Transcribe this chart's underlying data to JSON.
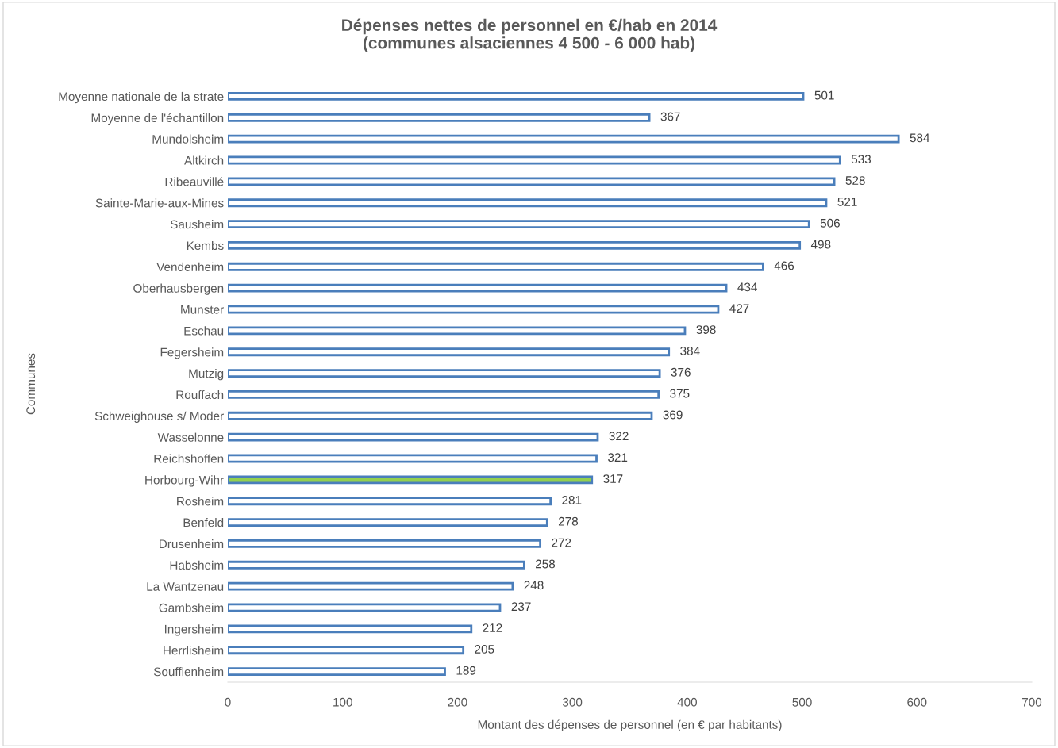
{
  "chart_data": {
    "type": "bar",
    "orientation": "horizontal",
    "title": "Dépenses nettes de personnel en €/hab en 2014\n(communes alsaciennes 4 500 - 6 000 hab)",
    "xlabel": "Montant des dépenses de personnel (en € par habitants)",
    "ylabel": "Communes",
    "categories": [
      "Moyenne nationale de la strate",
      "Moyenne de l'échantillon",
      "Mundolsheim",
      "Altkirch",
      "Ribeauvillé",
      "Sainte-Marie-aux-Mines",
      "Sausheim",
      "Kembs",
      "Vendenheim",
      "Oberhausbergen",
      "Munster",
      "Eschau",
      "Fegersheim",
      "Mutzig",
      "Rouffach",
      "Schweighouse s/ Moder",
      "Wasselonne",
      "Reichshoffen",
      "Horbourg-Wihr",
      "Rosheim",
      "Benfeld",
      "Drusenheim",
      "Habsheim",
      "La Wantzenau",
      "Gambsheim",
      "Ingersheim",
      "Herrlisheim",
      "Soufflenheim"
    ],
    "values": [
      501,
      367,
      584,
      533,
      528,
      521,
      506,
      498,
      466,
      434,
      427,
      398,
      384,
      376,
      375,
      369,
      322,
      321,
      317,
      281,
      278,
      272,
      258,
      248,
      237,
      212,
      205,
      189
    ],
    "color": "#4a7ebb",
    "colors": [
      "#ffffff",
      "#ffffff",
      "#ffffff",
      "#ffffff",
      "#ffffff",
      "#ffffff",
      "#ffffff",
      "#ffffff",
      "#ffffff",
      "#ffffff",
      "#ffffff",
      "#ffffff",
      "#ffffff",
      "#ffffff",
      "#ffffff",
      "#ffffff",
      "#ffffff",
      "#ffffff",
      "#92d050",
      "#ffffff",
      "#ffffff",
      "#ffffff",
      "#ffffff",
      "#ffffff",
      "#ffffff",
      "#ffffff",
      "#ffffff",
      "#ffffff"
    ],
    "xlim": [
      0,
      700
    ],
    "xticks": [
      0,
      100,
      200,
      300,
      400,
      500,
      600,
      700
    ],
    "data_labels": true,
    "grid": false,
    "legend": false
  }
}
